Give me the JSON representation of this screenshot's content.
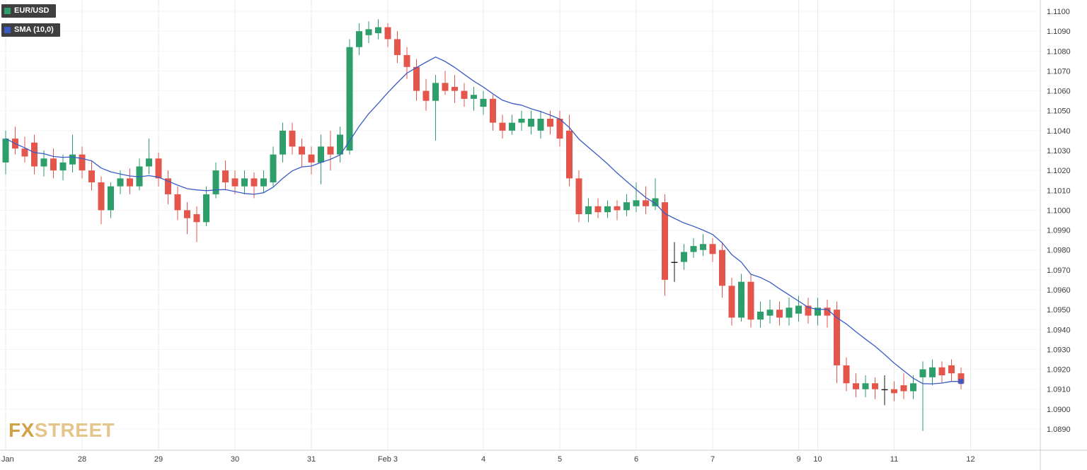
{
  "legend": {
    "symbol": {
      "label": "EUR/USD",
      "swatch_color": "#2e9e6b"
    },
    "indicator": {
      "label": "SMA (10,0)",
      "swatch_color": "#3b5bc4"
    }
  },
  "logo": {
    "part1": "FX",
    "part2": "STREET",
    "color_primary": "#d2a24a",
    "color_secondary": "#e4c68c"
  },
  "chart_data": {
    "type": "candlestick",
    "title": "EUR/USD",
    "indicator": "SMA (10,0)",
    "sma_window": 10,
    "colors": {
      "up": "#2e9e6b",
      "down": "#e4564c",
      "sma": "#3b5bc4",
      "doji": "#1a1a1a",
      "grid_v": "#ebebeb",
      "grid_h": "#f5f5f5",
      "axis_line": "#cfcfcf",
      "axis_text": "#3c3c3c"
    },
    "y_axis": {
      "min": 1.089,
      "max": 1.11,
      "step": 0.001,
      "decimals": 4
    },
    "x_ticks": [
      {
        "i": 0,
        "label": "Jan"
      },
      {
        "i": 8,
        "label": "28"
      },
      {
        "i": 16,
        "label": "29"
      },
      {
        "i": 24,
        "label": "30"
      },
      {
        "i": 32,
        "label": "31"
      },
      {
        "i": 40,
        "label": "Feb 3"
      },
      {
        "i": 50,
        "label": "4"
      },
      {
        "i": 58,
        "label": "5"
      },
      {
        "i": 66,
        "label": "6"
      },
      {
        "i": 74,
        "label": "7"
      },
      {
        "i": 83,
        "label": "9"
      },
      {
        "i": 85,
        "label": "10"
      },
      {
        "i": 93,
        "label": "11"
      },
      {
        "i": 101,
        "label": "12"
      }
    ],
    "candles": [
      [
        1.1024,
        1.104,
        1.1018,
        1.1036
      ],
      [
        1.1036,
        1.1042,
        1.1028,
        1.1031
      ],
      [
        1.1031,
        1.1037,
        1.1024,
        1.1027
      ],
      [
        1.1034,
        1.1038,
        1.1018,
        1.1022
      ],
      [
        1.1022,
        1.103,
        1.1017,
        1.1026
      ],
      [
        1.1026,
        1.1031,
        1.1016,
        1.102
      ],
      [
        1.102,
        1.1028,
        1.1015,
        1.1024
      ],
      [
        1.1023,
        1.1038,
        1.1019,
        1.1028
      ],
      [
        1.1028,
        1.1032,
        1.1016,
        1.102
      ],
      [
        1.102,
        1.1025,
        1.101,
        1.1014
      ],
      [
        1.1014,
        1.1017,
        1.0993,
        1.1
      ],
      [
        1.1,
        1.1014,
        1.0996,
        1.1012
      ],
      [
        1.1012,
        1.102,
        1.1008,
        1.1016
      ],
      [
        1.1016,
        1.1021,
        1.1008,
        1.1012
      ],
      [
        1.1012,
        1.1026,
        1.101,
        1.1022
      ],
      [
        1.1022,
        1.1036,
        1.1018,
        1.1026
      ],
      [
        1.1026,
        1.1029,
        1.1012,
        1.1016
      ],
      [
        1.1016,
        1.102,
        1.1003,
        1.1008
      ],
      [
        1.1008,
        1.1012,
        1.0995,
        1.1
      ],
      [
        1.1,
        1.1004,
        1.0988,
        1.0996
      ],
      [
        1.0998,
        1.1002,
        1.0984,
        1.0994
      ],
      [
        1.0994,
        1.1012,
        1.0992,
        1.1008
      ],
      [
        1.1008,
        1.1024,
        1.1006,
        1.102
      ],
      [
        1.102,
        1.1025,
        1.101,
        1.1014
      ],
      [
        1.1016,
        1.102,
        1.1008,
        1.1012
      ],
      [
        1.1012,
        1.102,
        1.1008,
        1.1016
      ],
      [
        1.1016,
        1.1019,
        1.1006,
        1.1012
      ],
      [
        1.1012,
        1.102,
        1.1009,
        1.1016
      ],
      [
        1.1014,
        1.1032,
        1.1012,
        1.1028
      ],
      [
        1.1028,
        1.1044,
        1.1024,
        1.104
      ],
      [
        1.104,
        1.1044,
        1.1028,
        1.1032
      ],
      [
        1.1032,
        1.1036,
        1.1022,
        1.1028
      ],
      [
        1.1028,
        1.1032,
        1.1018,
        1.1024
      ],
      [
        1.1024,
        1.1038,
        1.1013,
        1.1032
      ],
      [
        1.1032,
        1.104,
        1.102,
        1.1028
      ],
      [
        1.1028,
        1.1042,
        1.1024,
        1.1038
      ],
      [
        1.103,
        1.1086,
        1.1028,
        1.1082
      ],
      [
        1.1082,
        1.1094,
        1.1078,
        1.109
      ],
      [
        1.1088,
        1.1095,
        1.1084,
        1.1091
      ],
      [
        1.1089,
        1.1096,
        1.1086,
        1.1092
      ],
      [
        1.1092,
        1.1094,
        1.1082,
        1.1086
      ],
      [
        1.1086,
        1.109,
        1.1074,
        1.1078
      ],
      [
        1.1078,
        1.1082,
        1.1066,
        1.1072
      ],
      [
        1.1072,
        1.1076,
        1.1055,
        1.106
      ],
      [
        1.106,
        1.1066,
        1.105,
        1.1055
      ],
      [
        1.1055,
        1.1068,
        1.1035,
        1.1064
      ],
      [
        1.1064,
        1.107,
        1.1058,
        1.106
      ],
      [
        1.1062,
        1.1068,
        1.1054,
        1.106
      ],
      [
        1.106,
        1.1064,
        1.1052,
        1.1056
      ],
      [
        1.1056,
        1.1062,
        1.105,
        1.1058
      ],
      [
        1.1052,
        1.106,
        1.1048,
        1.1056
      ],
      [
        1.1056,
        1.1058,
        1.104,
        1.1044
      ],
      [
        1.1044,
        1.1048,
        1.1036,
        1.104
      ],
      [
        1.104,
        1.1048,
        1.1038,
        1.1044
      ],
      [
        1.1044,
        1.105,
        1.104,
        1.1046
      ],
      [
        1.1042,
        1.105,
        1.1038,
        1.1046
      ],
      [
        1.104,
        1.105,
        1.1036,
        1.1046
      ],
      [
        1.1046,
        1.105,
        1.1038,
        1.1042
      ],
      [
        1.1046,
        1.105,
        1.1032,
        1.1036
      ],
      [
        1.104,
        1.1048,
        1.1012,
        1.1016
      ],
      [
        1.1016,
        1.102,
        1.0994,
        1.0998
      ],
      [
        1.0998,
        1.1006,
        1.0994,
        1.1002
      ],
      [
        1.1002,
        1.1006,
        1.0996,
        1.0999
      ],
      [
        1.0999,
        1.1005,
        1.0996,
        1.1002
      ],
      [
        1.1002,
        1.1005,
        1.0995,
        1.1
      ],
      [
        1.1,
        1.1008,
        1.0997,
        1.1004
      ],
      [
        1.1002,
        1.1014,
        1.0999,
        1.1005
      ],
      [
        1.1005,
        1.1012,
        1.0998,
        1.1002
      ],
      [
        1.1002,
        1.1016,
        1.1,
        1.1006
      ],
      [
        1.1004,
        1.1008,
        1.0957,
        1.0965
      ],
      [
        1.0974,
        1.0984,
        1.0964,
        1.0974,
        "d"
      ],
      [
        1.0974,
        1.0983,
        1.097,
        1.0979
      ],
      [
        1.0979,
        1.0986,
        1.0976,
        1.0982
      ],
      [
        1.098,
        1.0988,
        1.0977,
        1.0983
      ],
      [
        1.0983,
        1.0986,
        1.0974,
        1.0978
      ],
      [
        1.098,
        1.0984,
        1.0956,
        1.0962
      ],
      [
        1.0962,
        1.0966,
        1.0942,
        1.0946
      ],
      [
        1.0946,
        1.0968,
        1.0944,
        1.0964
      ],
      [
        1.0964,
        1.0968,
        1.0941,
        1.0945
      ],
      [
        1.0945,
        1.0954,
        1.0941,
        1.0949
      ],
      [
        1.0947,
        1.0955,
        1.0943,
        1.095
      ],
      [
        1.095,
        1.0954,
        1.0942,
        1.0946
      ],
      [
        1.0946,
        1.0956,
        1.0942,
        1.0951
      ],
      [
        1.0948,
        1.0957,
        1.0944,
        1.0952
      ],
      [
        1.0952,
        1.0956,
        1.0943,
        1.0947
      ],
      [
        1.0947,
        1.0956,
        1.0942,
        1.0951
      ],
      [
        1.0951,
        1.0955,
        1.0941,
        1.0947
      ],
      [
        1.095,
        1.0954,
        1.0913,
        1.0922
      ],
      [
        1.0922,
        1.0926,
        1.0909,
        1.0913
      ],
      [
        1.0913,
        1.0918,
        1.0906,
        1.091
      ],
      [
        1.091,
        1.0917,
        1.0906,
        1.0913
      ],
      [
        1.0913,
        1.0916,
        1.0905,
        1.091
      ],
      [
        1.091,
        1.0917,
        1.0902,
        1.091,
        "d"
      ],
      [
        1.091,
        1.0914,
        1.0904,
        1.0908
      ],
      [
        1.0912,
        1.0918,
        1.0905,
        1.0909
      ],
      [
        1.0909,
        1.0917,
        1.0905,
        1.0913
      ],
      [
        1.0916,
        1.0924,
        1.0889,
        1.092
      ],
      [
        1.0916,
        1.0925,
        1.0912,
        1.0921
      ],
      [
        1.0921,
        1.0924,
        1.0913,
        1.0917
      ],
      [
        1.0922,
        1.0925,
        1.0914,
        1.0918
      ],
      [
        1.0918,
        1.0921,
        1.091,
        1.0913
      ]
    ]
  }
}
